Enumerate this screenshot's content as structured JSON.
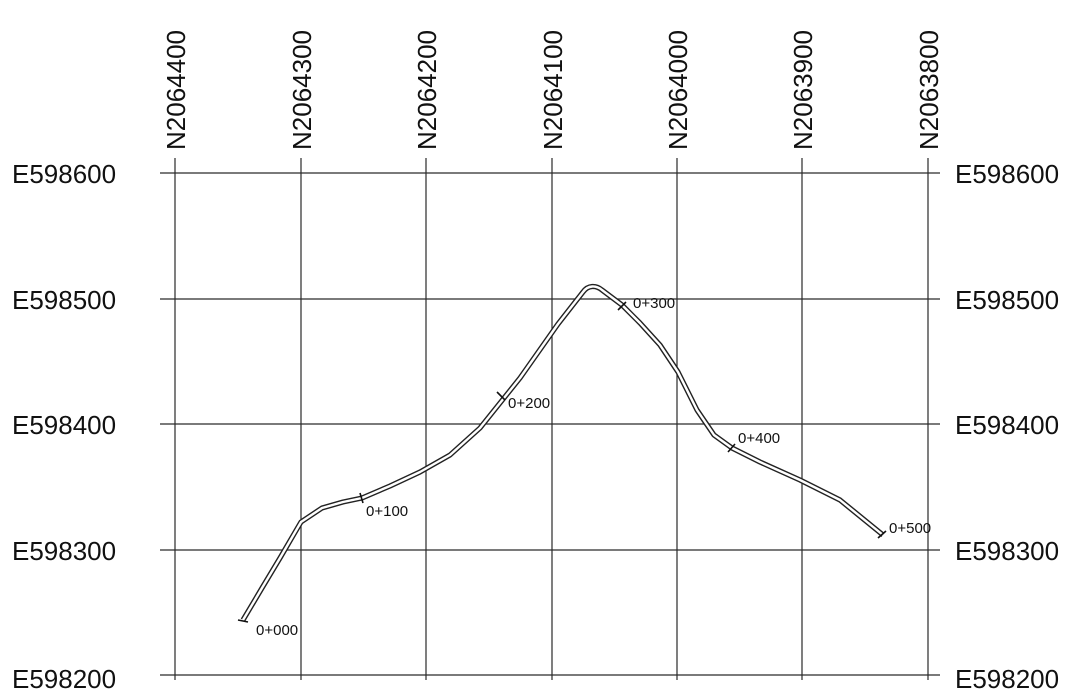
{
  "northing_labels": [
    "N2064400",
    "N2064300",
    "N2064200",
    "N2064100",
    "N2064000",
    "N2063900",
    "N2063800"
  ],
  "easting_labels": [
    "E598600",
    "E598500",
    "E598400",
    "E598300",
    "E598200"
  ],
  "station_labels": [
    "0+000",
    "0+100",
    "0+200",
    "0+300",
    "0+400",
    "0+500"
  ],
  "colors": {
    "grid": "#2a2a2a",
    "alignment": "#222222",
    "text": "#111111",
    "background": "#ffffff"
  }
}
